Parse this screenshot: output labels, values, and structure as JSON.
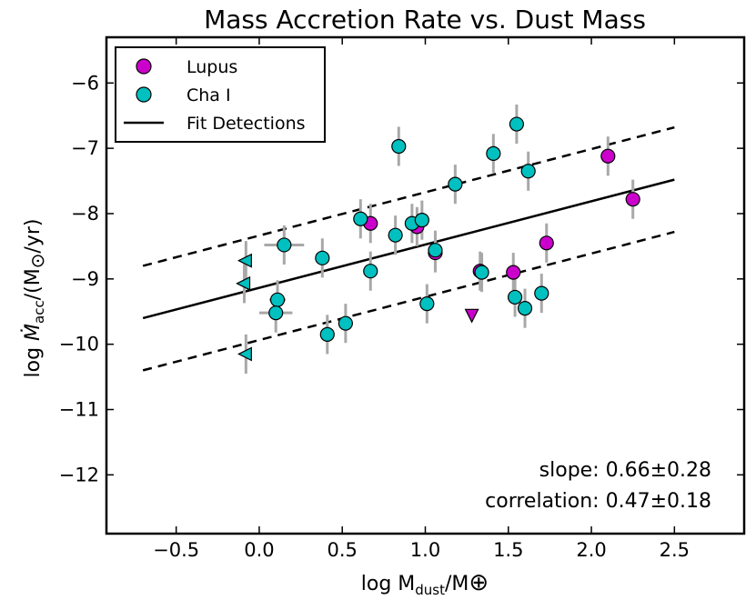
{
  "chart_data": {
    "type": "scatter",
    "title": "Mass Accretion Rate vs. Dust Mass",
    "xlabel": "log M_dust/M_⊕",
    "ylabel": "log Ṁ_acc/(M_⊙/yr)",
    "xlim": [
      -0.92,
      2.92
    ],
    "ylim": [
      -12.9,
      -5.3
    ],
    "xticks": [
      -0.5,
      0.0,
      0.5,
      1.0,
      1.5,
      2.0,
      2.5
    ],
    "xtick_labels": [
      "−0.5",
      "0.0",
      "0.5",
      "1.0",
      "1.5",
      "2.0",
      "2.5"
    ],
    "yticks": [
      -12,
      -11,
      -10,
      -9,
      -8,
      -7,
      -6
    ],
    "ytick_labels": [
      "−12",
      "−11",
      "−10",
      "−9",
      "−8",
      "−7",
      "−6"
    ],
    "grid": false,
    "legend_position": "top-left",
    "legend": [
      {
        "label": "Lupus",
        "kind": "marker",
        "color": "#cc00cc"
      },
      {
        "label": "Cha I",
        "kind": "marker",
        "color": "#00c0c0"
      },
      {
        "label": "Fit Detections",
        "kind": "line",
        "color": "#000000"
      }
    ],
    "annotations": [
      "slope: 0.66±0.28",
      "correlation: 0.47±0.18"
    ],
    "fit": {
      "x": [
        -0.7,
        2.5
      ],
      "y": [
        -9.6,
        -7.48
      ],
      "dashed_offset": 0.8
    },
    "series": [
      {
        "name": "Lupus",
        "color": "#cc00cc",
        "points": [
          {
            "x": 0.67,
            "y": -8.15,
            "ey": 0.3
          },
          {
            "x": 0.95,
            "y": -8.2,
            "ey": 0.3
          },
          {
            "x": 1.06,
            "y": -8.6,
            "ey": 0.3
          },
          {
            "x": 1.33,
            "y": -8.88,
            "ey": 0.3
          },
          {
            "x": 1.53,
            "y": -8.9,
            "ey": 0.3
          },
          {
            "x": 1.73,
            "y": -8.45,
            "ey": 0.3
          },
          {
            "x": 2.1,
            "y": -7.12,
            "ey": 0.3
          },
          {
            "x": 2.25,
            "y": -7.78,
            "ey": 0.3
          }
        ],
        "upper_limits": [
          {
            "x": 1.28,
            "y": -9.55
          }
        ]
      },
      {
        "name": "Cha I",
        "color": "#00c0c0",
        "points": [
          {
            "x": 0.15,
            "y": -8.48,
            "ey": 0.3,
            "ex": 0.12
          },
          {
            "x": 0.11,
            "y": -9.32,
            "ey": 0.3,
            "ex": 0.05
          },
          {
            "x": 0.1,
            "y": -9.52,
            "ey": 0.3,
            "ex": 0.1
          },
          {
            "x": 0.38,
            "y": -8.68,
            "ey": 0.3
          },
          {
            "x": 0.41,
            "y": -9.85,
            "ey": 0.3
          },
          {
            "x": 0.52,
            "y": -9.68,
            "ey": 0.3
          },
          {
            "x": 0.61,
            "y": -8.08,
            "ey": 0.3
          },
          {
            "x": 0.67,
            "y": -8.88,
            "ey": 0.3
          },
          {
            "x": 0.82,
            "y": -8.33,
            "ey": 0.3
          },
          {
            "x": 0.84,
            "y": -6.97,
            "ey": 0.3
          },
          {
            "x": 0.92,
            "y": -8.15,
            "ey": 0.3
          },
          {
            "x": 0.98,
            "y": -8.1,
            "ey": 0.3
          },
          {
            "x": 1.01,
            "y": -9.38,
            "ey": 0.3
          },
          {
            "x": 1.06,
            "y": -8.56,
            "ey": 0.3
          },
          {
            "x": 1.18,
            "y": -7.55,
            "ey": 0.3
          },
          {
            "x": 1.34,
            "y": -8.9,
            "ey": 0.3
          },
          {
            "x": 1.41,
            "y": -7.08,
            "ey": 0.3
          },
          {
            "x": 1.54,
            "y": -9.28,
            "ey": 0.3
          },
          {
            "x": 1.55,
            "y": -6.63,
            "ey": 0.3
          },
          {
            "x": 1.6,
            "y": -9.45,
            "ey": 0.3
          },
          {
            "x": 1.62,
            "y": -7.35,
            "ey": 0.3
          },
          {
            "x": 1.7,
            "y": -9.22,
            "ey": 0.3
          }
        ],
        "limits_left": [
          {
            "x": -0.08,
            "y": -8.72
          },
          {
            "x": -0.09,
            "y": -9.07
          },
          {
            "x": -0.08,
            "y": -10.15
          }
        ]
      }
    ]
  }
}
